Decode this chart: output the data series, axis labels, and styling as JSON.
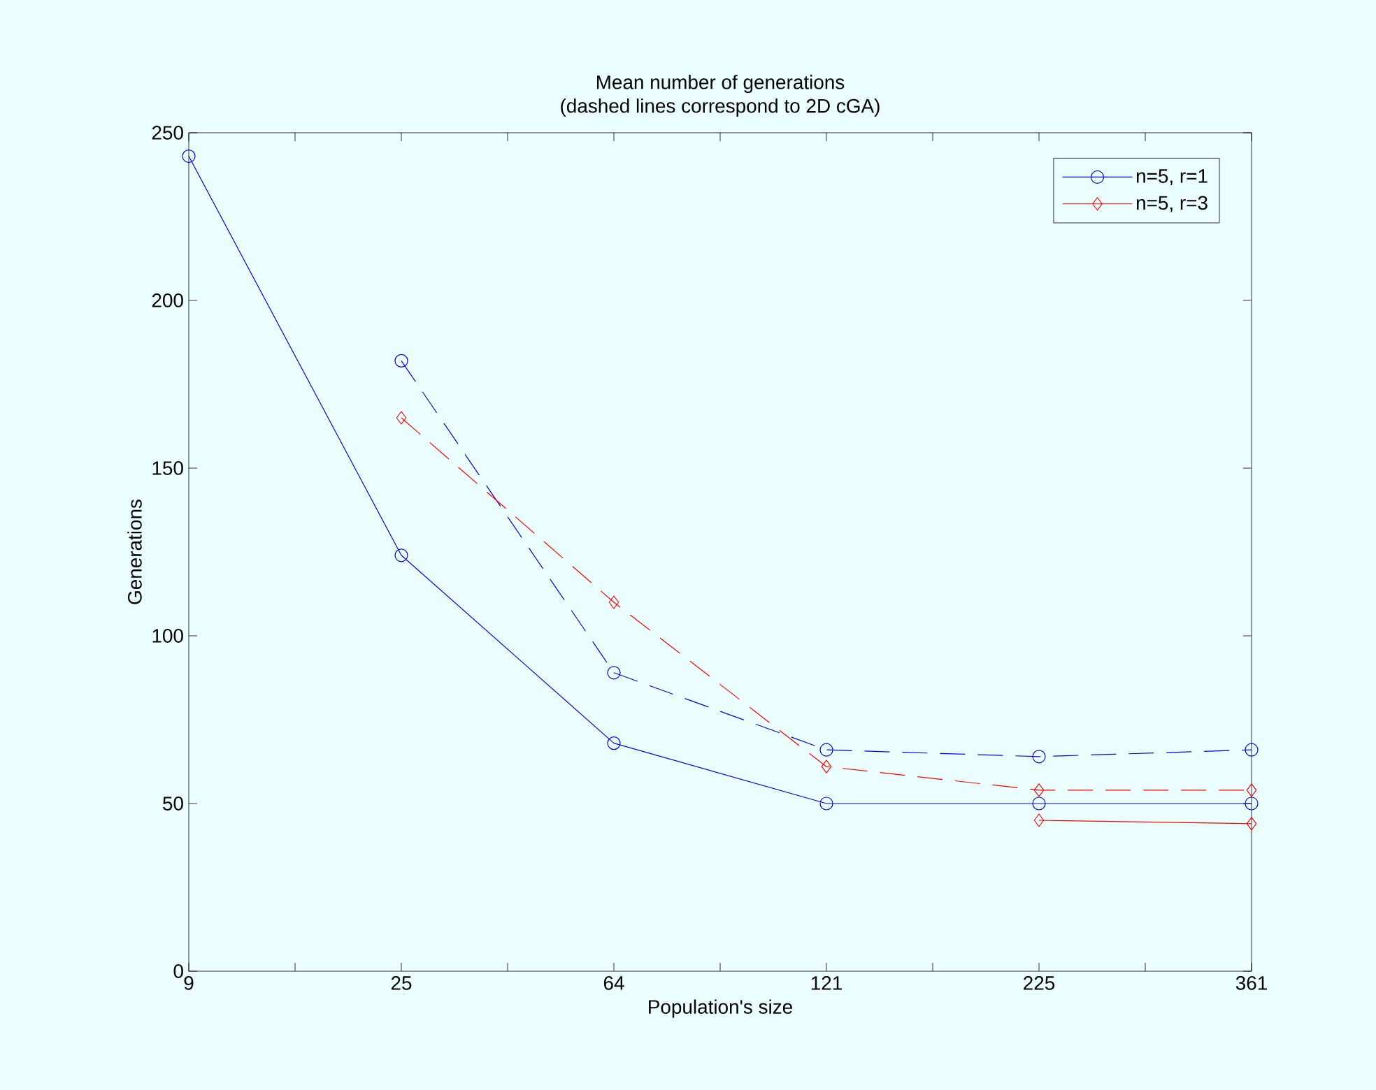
{
  "chart_data": {
    "type": "line",
    "title": "Mean number of generations",
    "subtitle": "(dashed lines correspond to 2D cGA)",
    "xlabel": "Population's size",
    "ylabel": "Generations",
    "categories": [
      "9",
      "25",
      "64",
      "121",
      "225",
      "361"
    ],
    "series": [
      {
        "name": "n=5, r=1",
        "color": "#0000ff",
        "marker": "circle",
        "line_style": "solid",
        "values": [
          243,
          124,
          68,
          50,
          50,
          50
        ]
      },
      {
        "name": "n=5, r=3",
        "color": "#ff0000",
        "marker": "diamond",
        "line_style": "solid",
        "values": [
          null,
          null,
          null,
          null,
          45,
          44
        ]
      },
      {
        "color": "#0000ff",
        "marker": "circle",
        "line_style": "dashed",
        "values": [
          null,
          182,
          89,
          66,
          64,
          66
        ]
      },
      {
        "color": "#ff0000",
        "marker": "diamond",
        "line_style": "dashed",
        "values": [
          null,
          165,
          110,
          61,
          54,
          54
        ]
      }
    ],
    "ylim": [
      0,
      250
    ],
    "yticks": [
      0,
      50,
      100,
      150,
      200,
      250
    ],
    "grid": false,
    "legend": "top right"
  }
}
